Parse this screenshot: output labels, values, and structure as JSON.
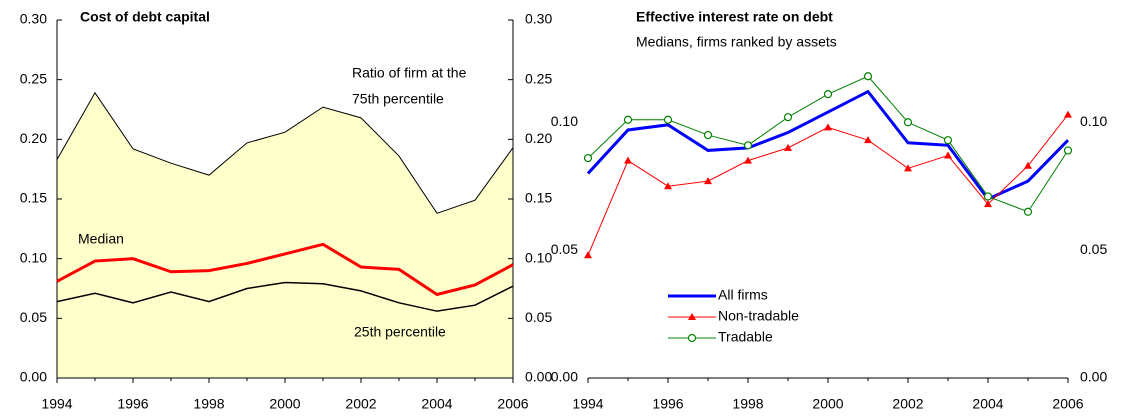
{
  "chart_data": [
    {
      "type": "area-line",
      "title": "Cost of debt capital",
      "annotations": [
        "Ratio of firm at the",
        "75th percentile",
        "Median",
        "25th percentile"
      ],
      "x": [
        1994,
        1995,
        1996,
        1997,
        1998,
        1999,
        2000,
        2001,
        2002,
        2003,
        2004,
        2005,
        2006
      ],
      "series": [
        {
          "name": "75th percentile",
          "color": "#000000",
          "fill": "#ffffcc",
          "width": 1,
          "values": [
            0.183,
            0.239,
            0.192,
            0.18,
            0.17,
            0.197,
            0.206,
            0.227,
            0.218,
            0.186,
            0.138,
            0.149,
            0.193
          ]
        },
        {
          "name": "Median",
          "color": "#ff0000",
          "width": 3,
          "values": [
            0.081,
            0.098,
            0.1,
            0.089,
            0.09,
            0.096,
            0.104,
            0.112,
            0.093,
            0.091,
            0.07,
            0.078,
            0.095
          ]
        },
        {
          "name": "25th percentile",
          "color": "#000000",
          "width": 1.5,
          "values": [
            0.064,
            0.071,
            0.063,
            0.072,
            0.064,
            0.075,
            0.08,
            0.079,
            0.073,
            0.063,
            0.056,
            0.061,
            0.077
          ]
        }
      ],
      "xlim": [
        1994,
        2006
      ],
      "xticks": [
        1994,
        1996,
        1998,
        2000,
        2002,
        2004,
        2006
      ],
      "ylim": [
        0,
        0.3
      ],
      "yticks": [
        {
          "value": 0,
          "label": "0.00"
        },
        {
          "value": 0.05,
          "label": "0.05"
        },
        {
          "value": 0.1,
          "label": "0.10"
        },
        {
          "value": 0.15,
          "label": "0.15"
        },
        {
          "value": 0.2,
          "label": "0.20"
        },
        {
          "value": 0.25,
          "label": "0.25"
        },
        {
          "value": 0.3,
          "label": "0.30"
        }
      ]
    },
    {
      "type": "line",
      "title": "Effective interest rate on debt",
      "subtitle": "Medians, firms ranked by assets",
      "legend": "lower left",
      "x": [
        1994,
        1995,
        1996,
        1997,
        1998,
        1999,
        2000,
        2001,
        2002,
        2003,
        2004,
        2005,
        2006
      ],
      "series": [
        {
          "name": "All firms",
          "color": "#0000ff",
          "width": 3,
          "values": [
            0.08,
            0.097,
            0.099,
            0.089,
            0.09,
            0.096,
            0.104,
            0.112,
            0.092,
            0.091,
            0.07,
            0.077,
            0.093
          ]
        },
        {
          "name": "Non-tradable",
          "color": "#ff0000",
          "width": 1,
          "marker": "triangle",
          "values": [
            0.048,
            0.085,
            0.075,
            0.077,
            0.085,
            0.09,
            0.098,
            0.093,
            0.082,
            0.087,
            0.068,
            0.083,
            0.103
          ]
        },
        {
          "name": "Tradable",
          "color": "#008000",
          "width": 1,
          "marker": "circle-open",
          "values": [
            0.086,
            0.101,
            0.101,
            0.095,
            0.091,
            0.102,
            0.111,
            0.118,
            0.1,
            0.093,
            0.071,
            0.065,
            0.089
          ]
        }
      ],
      "xlim": [
        1994,
        2006
      ],
      "xticks": [
        1994,
        1996,
        1998,
        2000,
        2002,
        2004,
        2006
      ],
      "ylim": [
        0,
        0.14
      ],
      "yticks": [
        {
          "value": 0,
          "label": "0.00"
        },
        {
          "value": 0.05,
          "label": "0.05"
        },
        {
          "value": 0.1,
          "label": "0.10"
        }
      ]
    }
  ]
}
